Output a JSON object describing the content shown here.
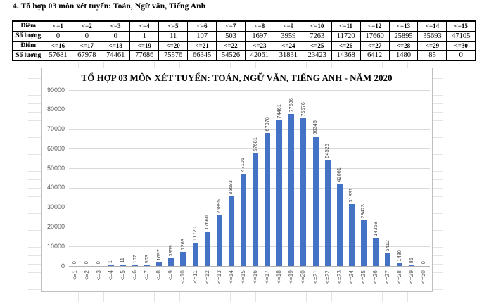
{
  "document": {
    "section_title": "4. Tổ hợp 03 môn xét tuyển: Toán, Ngữ văn, Tiếng Anh"
  },
  "table": {
    "row_labels": [
      "Điểm",
      "Số lượng",
      "Điểm",
      "Số lượng"
    ],
    "rows": [
      {
        "label": "Điểm",
        "header": true,
        "cells": [
          "<=1",
          "<=2",
          "<=3",
          "<=4",
          "<=5",
          "<=6",
          "<=7",
          "<=8",
          "<=9",
          "<=10",
          "<=11",
          "<=12",
          "<=13",
          "<=14",
          "<=15"
        ]
      },
      {
        "label": "Số lượng",
        "header": false,
        "cells": [
          "0",
          "0",
          "0",
          "1",
          "11",
          "107",
          "503",
          "1697",
          "3959",
          "7263",
          "11720",
          "17660",
          "25895",
          "35693",
          "47105"
        ]
      },
      {
        "label": "Điểm",
        "header": true,
        "cells": [
          "<=16",
          "<=17",
          "<=18",
          "<=19",
          "<=20",
          "<=21",
          "<=22",
          "<=23",
          "<=24",
          "<=25",
          "<=26",
          "<=27",
          "<=28",
          "<=29",
          "<=30"
        ]
      },
      {
        "label": "Số lượng",
        "header": false,
        "cells": [
          "57681",
          "67978",
          "74461",
          "77686",
          "75576",
          "66345",
          "54526",
          "42061",
          "31831",
          "23423",
          "14368",
          "6412",
          "1480",
          "85",
          "0"
        ]
      }
    ]
  },
  "chart_data": {
    "type": "bar",
    "title": "TỔ HỢP 03 MÔN XÉT TUYỂN: TOÁN, NGỮ VĂN, TIẾNG ANH - NĂM 2020",
    "categories": [
      "<=1",
      "<=2",
      "<=3",
      "<=4",
      "<=5",
      "<=6",
      "<=7",
      "<=8",
      "<=9",
      "<=10",
      "<=11",
      "<=12",
      "<=13",
      "<=14",
      "<=15",
      "<=16",
      "<=17",
      "<=18",
      "<=19",
      "<=20",
      "<=21",
      "<=22",
      "<=23",
      "<=24",
      "<=25",
      "<=26",
      "<=27",
      "<=28",
      "<=29",
      "<=30"
    ],
    "values": [
      0,
      0,
      0,
      1,
      11,
      107,
      503,
      1697,
      3959,
      7263,
      11720,
      17660,
      25895,
      35693,
      47105,
      57681,
      67978,
      74461,
      77686,
      75576,
      66345,
      54526,
      42061,
      31831,
      23423,
      14368,
      6412,
      1480,
      85,
      0
    ],
    "xlabel": "",
    "ylabel": "",
    "ylim": [
      0,
      90000
    ],
    "ytick_step": 10000,
    "yticks": [
      "0",
      "10000",
      "20000",
      "30000",
      "40000",
      "50000",
      "60000",
      "70000",
      "80000",
      "90000"
    ],
    "grid": true,
    "legend": "none",
    "data_labels": true,
    "label_rotation": "vertical-bottom-to-top",
    "bar_color": "#4472C4",
    "gridline_color": "#D9D9D9",
    "axis_text_color": "#595959"
  }
}
